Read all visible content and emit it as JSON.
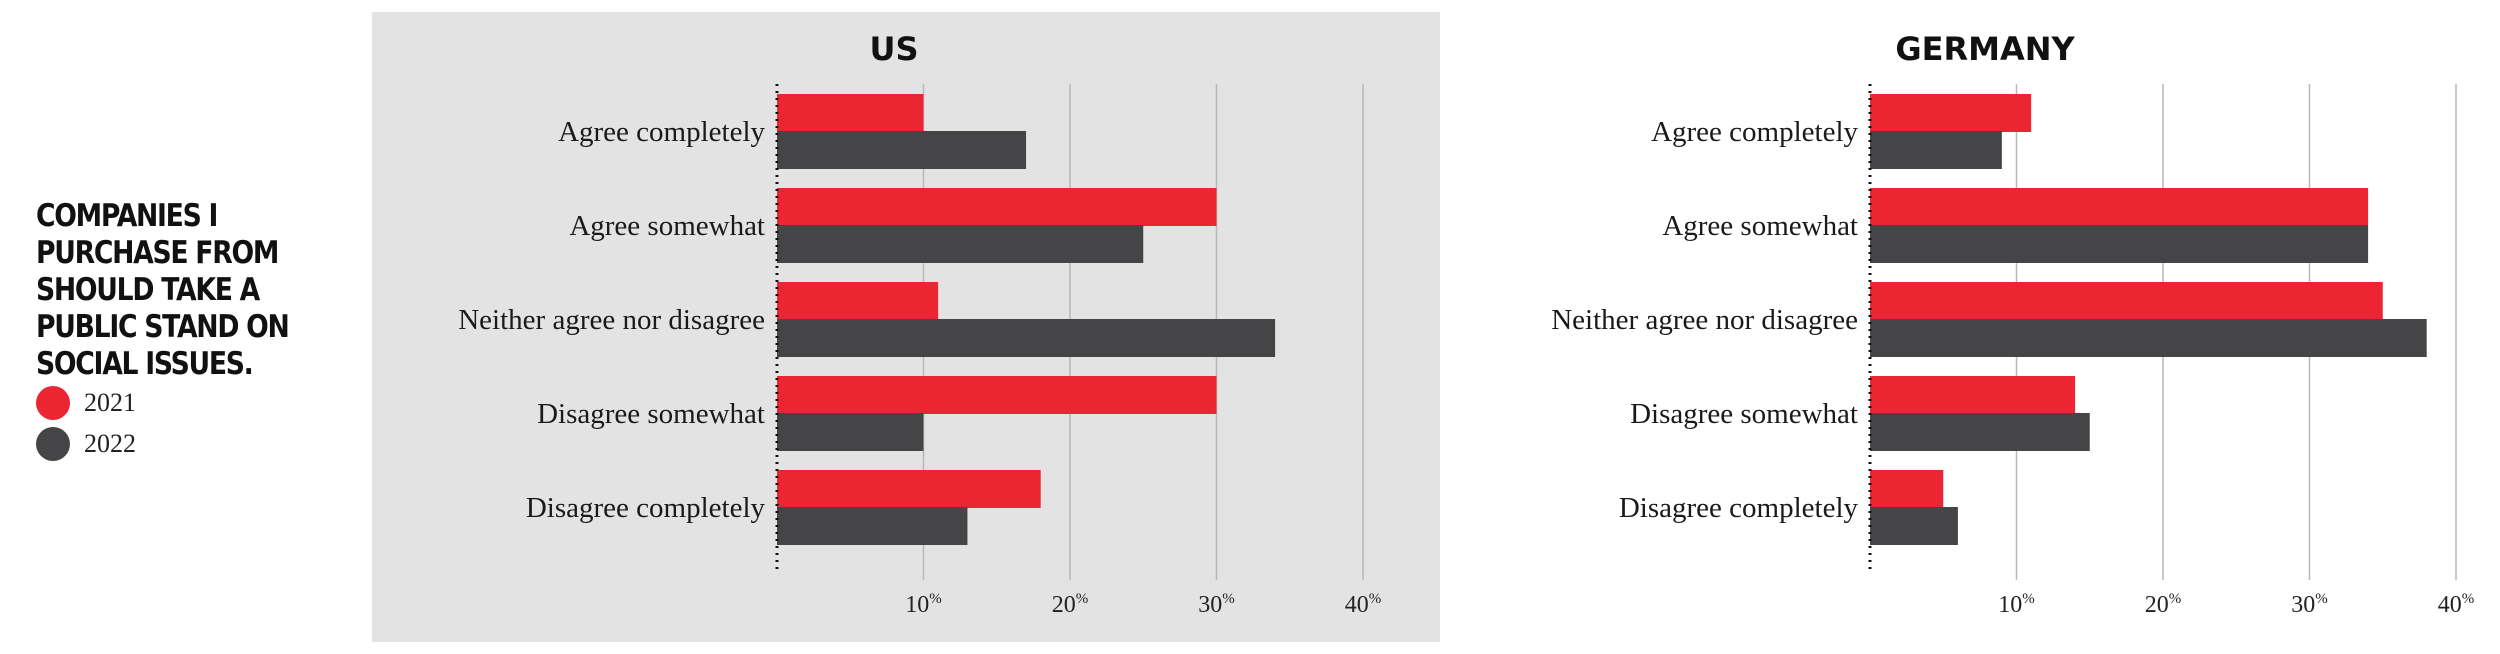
{
  "chart_title": "Companies I purchase from should take a public stand on social issues.",
  "legend": [
    {
      "label": "2021",
      "color": "#ec2533"
    },
    {
      "label": "2022",
      "color": "#454446"
    }
  ],
  "chart_data": [
    {
      "type": "bar",
      "orientation": "horizontal",
      "title": "US",
      "categories": [
        "Agree completely",
        "Agree somewhat",
        "Neither agree nor disagree",
        "Disagree somewhat",
        "Disagree completely"
      ],
      "series": [
        {
          "name": "2021",
          "color": "#ec2533",
          "values": [
            10,
            30,
            11,
            30,
            18
          ]
        },
        {
          "name": "2022",
          "color": "#454446",
          "values": [
            17,
            25,
            34,
            10,
            13
          ]
        }
      ],
      "xlim": [
        0,
        40
      ],
      "xticks": [
        10,
        20,
        30,
        40
      ],
      "tick_suffix": "%",
      "grid": true,
      "xlabel": "",
      "ylabel": ""
    },
    {
      "type": "bar",
      "orientation": "horizontal",
      "title": "GERMANY",
      "categories": [
        "Agree completely",
        "Agree somewhat",
        "Neither agree nor disagree",
        "Disagree somewhat",
        "Disagree completely"
      ],
      "series": [
        {
          "name": "2021",
          "color": "#ec2533",
          "values": [
            11,
            34,
            35,
            14,
            5
          ]
        },
        {
          "name": "2022",
          "color": "#454446",
          "values": [
            9,
            34,
            38,
            15,
            6
          ]
        }
      ],
      "xlim": [
        0,
        40
      ],
      "xticks": [
        10,
        20,
        30,
        40
      ],
      "tick_suffix": "%",
      "grid": true,
      "xlabel": "",
      "ylabel": ""
    }
  ]
}
